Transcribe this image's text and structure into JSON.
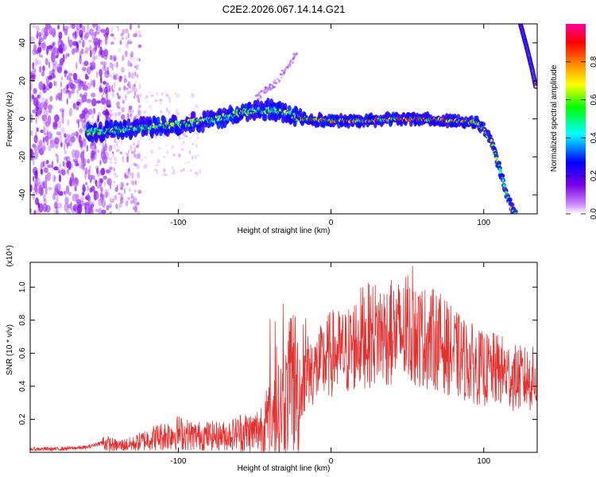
{
  "chart_data": [
    {
      "type": "heatmap",
      "title": "C2E2.2026.067.14.14.G21",
      "xlabel": "Height of straight line (km)",
      "ylabel": "Frequency (Hz)",
      "xlim": [
        -197,
        135
      ],
      "ylim": [
        -50,
        50
      ],
      "xticks": [
        -100,
        0,
        100
      ],
      "xtick_labels": [
        "-100",
        "0",
        "100"
      ],
      "yticks": [
        -40,
        -20,
        0,
        20,
        40
      ],
      "ytick_labels": [
        "-40",
        "-20",
        "0",
        "20",
        "40"
      ],
      "colorbar": {
        "label": "Normalized spectral amplitude",
        "range": [
          0,
          1
        ],
        "ticks": [
          0.0,
          0.2,
          0.4,
          0.6,
          0.8
        ],
        "tick_labels": [
          "0.0",
          "0.2",
          "0.4",
          "0.6",
          "0.8"
        ],
        "colormap": [
          "#ffffff",
          "#cc88ff",
          "#7a00e6",
          "#0000ff",
          "#00ffff",
          "#00ff00",
          "#ffff00",
          "#ff8800",
          "#ff0000",
          "#ff0099"
        ]
      },
      "ridge": {
        "description_points_x": [
          -155,
          -130,
          -100,
          -80,
          -60,
          -40,
          -25,
          -20,
          0,
          20,
          40,
          60,
          80,
          95,
          100,
          105,
          110,
          115,
          120
        ],
        "description_points_y": [
          -7,
          -5,
          -3,
          -1,
          3,
          5,
          2,
          0,
          -1,
          -1,
          0,
          0,
          -1,
          -2,
          -5,
          -12,
          -25,
          -40,
          -50
        ]
      },
      "upper_right_branch": {
        "x": [
          124,
          128,
          132,
          134
        ],
        "y": [
          50,
          38,
          25,
          17
        ]
      },
      "faint_branch": {
        "x": [
          -50,
          -35,
          -22
        ],
        "y": [
          10,
          20,
          35
        ]
      }
    },
    {
      "type": "line",
      "xlabel": "Height of straight line (km)",
      "ylabel": "SNR (10 * v/v)",
      "y_multiplier": "(x10⁴)",
      "xlim": [
        -197,
        135
      ],
      "ylim": [
        0,
        1.15
      ],
      "xticks": [
        -100,
        0,
        100
      ],
      "xtick_labels": [
        "-100",
        "0",
        "100"
      ],
      "yticks": [
        0.2,
        0.4,
        0.6,
        0.8,
        1.0
      ],
      "ytick_labels": [
        "0.2",
        "0.4",
        "0.6",
        "0.8",
        "1.0"
      ],
      "color": "#e53030",
      "series": [
        {
          "name": "SNR",
          "x": [
            -197,
            -180,
            -160,
            -150,
            -140,
            -130,
            -120,
            -110,
            -100,
            -90,
            -80,
            -70,
            -60,
            -50,
            -40,
            -30,
            -25,
            -20,
            -15,
            -10,
            0,
            10,
            20,
            30,
            40,
            50,
            60,
            70,
            80,
            90,
            100,
            110,
            120,
            135
          ],
          "y": [
            0.02,
            0.02,
            0.03,
            0.06,
            0.04,
            0.05,
            0.08,
            0.1,
            0.12,
            0.1,
            0.1,
            0.1,
            0.12,
            0.12,
            0.2,
            0.3,
            0.45,
            0.35,
            0.5,
            0.5,
            0.6,
            0.6,
            0.7,
            0.72,
            0.72,
            0.72,
            0.7,
            0.68,
            0.6,
            0.55,
            0.5,
            0.5,
            0.45,
            0.44
          ]
        }
      ]
    }
  ]
}
